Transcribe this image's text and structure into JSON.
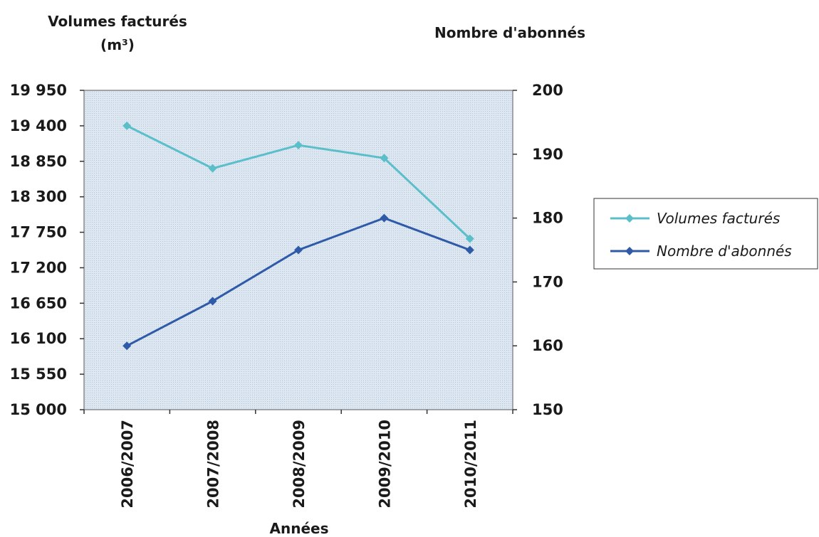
{
  "chart_data": {
    "type": "line",
    "categories": [
      "2006/2007",
      "2007/2008",
      "2008/2009",
      "2009/2010",
      "2010/2011"
    ],
    "xlabel": "Années",
    "y_left": {
      "title_line1": "Volumes facturés",
      "title_line2": "(m³)",
      "range": [
        15000,
        19950
      ],
      "ticks": [
        15000,
        15550,
        16100,
        16650,
        17200,
        17750,
        18300,
        18850,
        19400,
        19950
      ],
      "tick_labels": [
        "15 000",
        "15 550",
        "16 100",
        "16 650",
        "17 200",
        "17 750",
        "18 300",
        "18 850",
        "19 400",
        "19 950"
      ]
    },
    "y_right": {
      "title": "Nombre d'abonnés",
      "range": [
        150,
        200
      ],
      "ticks": [
        150,
        160,
        170,
        180,
        190,
        200
      ],
      "tick_labels": [
        "150",
        "160",
        "170",
        "180",
        "190",
        "200"
      ]
    },
    "series": [
      {
        "name": "Volumes facturés",
        "axis": "left",
        "color": "#5bbfca",
        "values": [
          19400,
          18740,
          19100,
          18900,
          17650
        ]
      },
      {
        "name": "Nombre d'abonnés",
        "axis": "right",
        "color": "#2e5aa8",
        "values": [
          160,
          167,
          175,
          180,
          175
        ]
      }
    ],
    "grid": false,
    "plot_background": "#dde7f2",
    "legend_position": "right"
  }
}
